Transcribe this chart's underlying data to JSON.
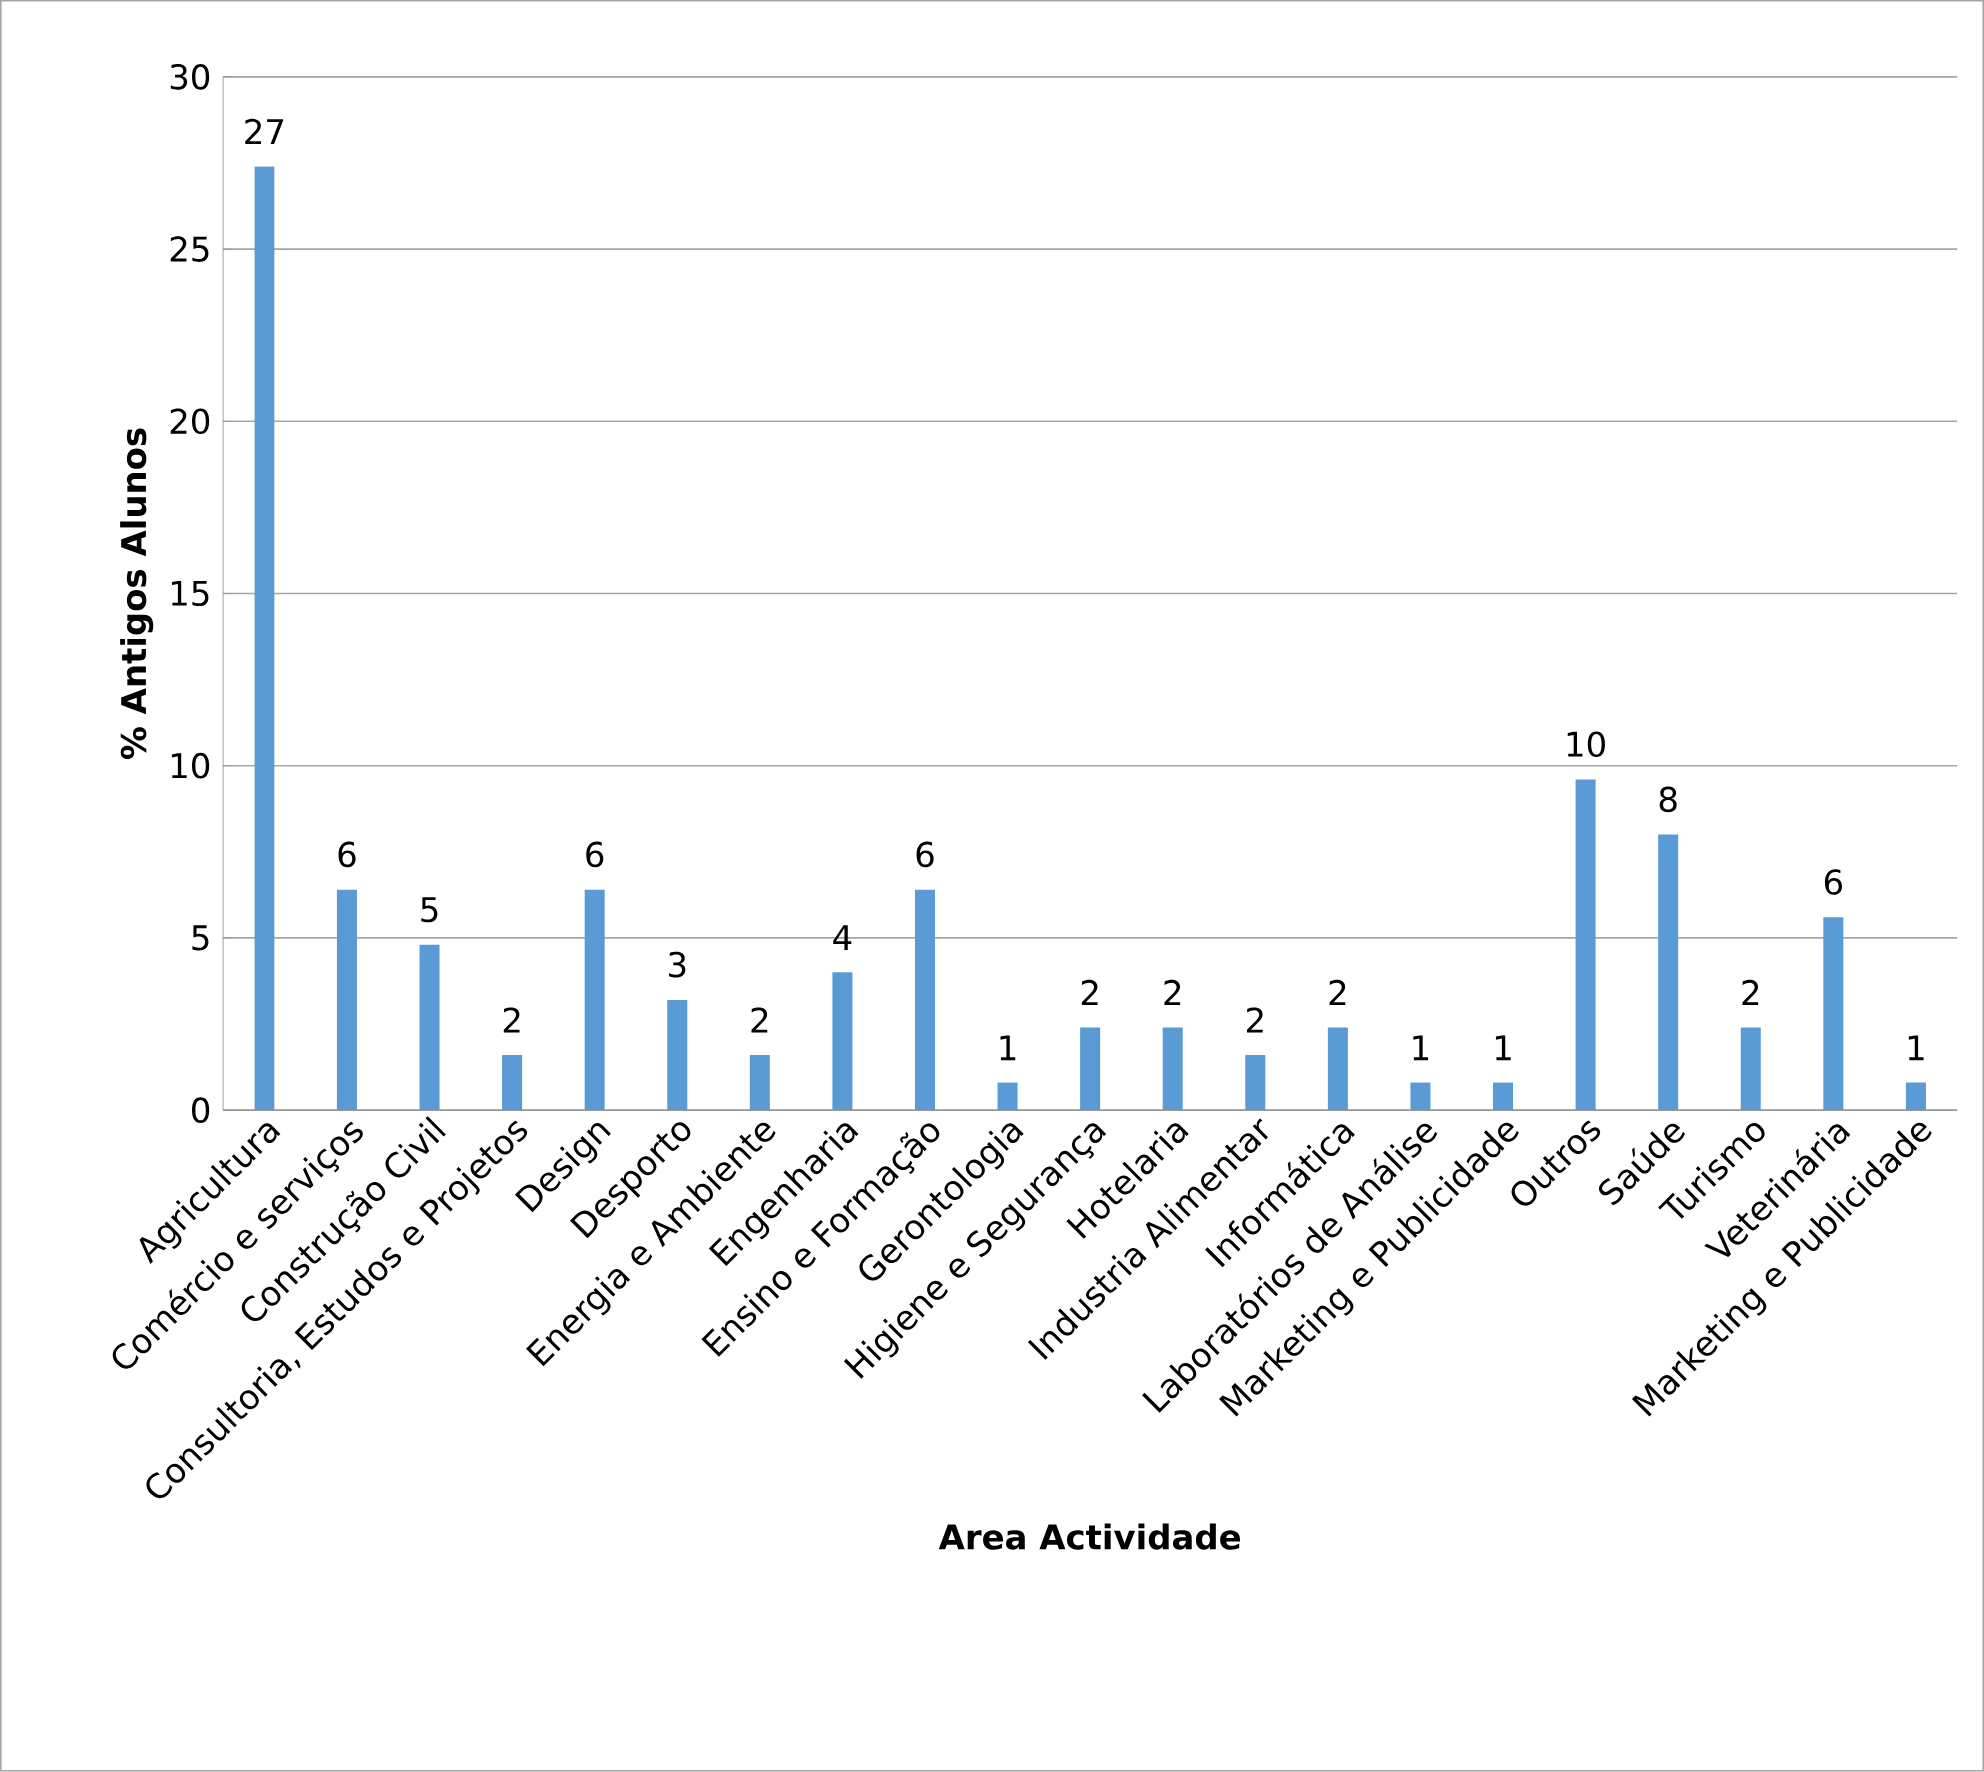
{
  "chart_data": {
    "type": "bar",
    "xlabel": "Area Actividade",
    "ylabel": "% Antigos Alunos",
    "categories": [
      "Agricultura",
      "Comércio e serviços",
      "Construção Civil",
      "Consultoria, Estudos e Projetos",
      "Design",
      "Desporto",
      "Energia e Ambiente",
      "Engenharia",
      "Ensino e Formação",
      "Gerontologia",
      "Higiene e Segurança",
      "Hotelaria",
      "Industria Alimentar",
      "Informática",
      "Laboratórios de Análise",
      "Marketing e Publicidade",
      "Outros",
      "Saúde",
      "Turismo",
      "Veterinária",
      "Marketing e Publicidade"
    ],
    "values": [
      27.4,
      6.4,
      4.8,
      1.6,
      6.4,
      3.2,
      1.6,
      4.0,
      6.4,
      0.8,
      2.4,
      2.4,
      1.6,
      2.4,
      0.8,
      0.8,
      9.6,
      8.0,
      2.4,
      5.6,
      0.8
    ],
    "value_labels": [
      "27",
      "6",
      "5",
      "2",
      "6",
      "3",
      "2",
      "4",
      "6",
      "1",
      "2",
      "2",
      "2",
      "2",
      "1",
      "1",
      "10",
      "8",
      "2",
      "6",
      "1"
    ],
    "color": "#5b9bd5",
    "ylim": [
      0,
      30
    ],
    "yticks": [
      0,
      5,
      10,
      15,
      20,
      25,
      30
    ],
    "grid": "y"
  }
}
